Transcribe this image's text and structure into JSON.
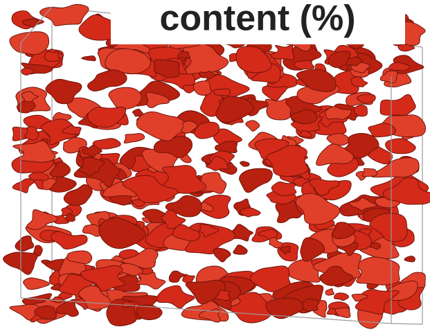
{
  "title": "content (%)"
}
